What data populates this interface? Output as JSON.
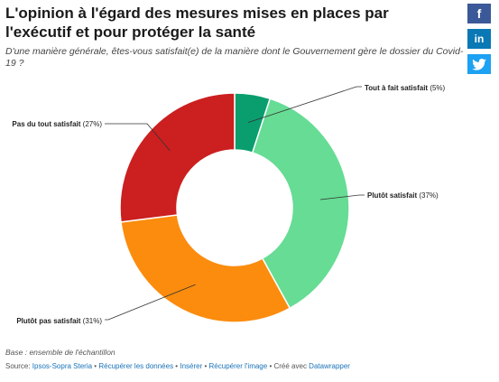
{
  "header": {
    "title": "L'opinion à l'égard des mesures mises en places par l'exécutif et pour protéger la santé",
    "subtitle": "D'une manière générale, êtes-vous satisfait(e) de la manière dont le Gouvernement gère le dossier du Covid-19 ?"
  },
  "share": {
    "facebook_icon": "f",
    "linkedin_icon": "in",
    "twitter_icon": "twitter-bird"
  },
  "chart_data": {
    "type": "pie",
    "donut": true,
    "slices": [
      {
        "label": "Tout à fait satisfait",
        "value": 5,
        "display": "Tout à fait satisfait (5%)",
        "color": "#0a9e6e"
      },
      {
        "label": "Plutôt satisfait",
        "value": 37,
        "display": "Plutôt satisfait (37%)",
        "color": "#66dc94"
      },
      {
        "label": "Plutôt pas satisfait",
        "value": 31,
        "display": "Plutôt pas satisfait (31%)",
        "color": "#fb8c0e"
      },
      {
        "label": "Pas du tout satisfait",
        "value": 27,
        "display": "Pas du tout satisfait (27%)",
        "color": "#cc1f1f"
      }
    ]
  },
  "footer": {
    "base": "Base : ensemble de l'échantillon",
    "source_label": "Source: ",
    "source_link": "Ipsos-Sopra Steria",
    "get_data": "Récupérer les données",
    "insert": "Insérer",
    "get_image": "Récupérer l'image",
    "created_with": "Créé avec ",
    "datawrapper": "Datawrapper",
    "separator": "•"
  }
}
